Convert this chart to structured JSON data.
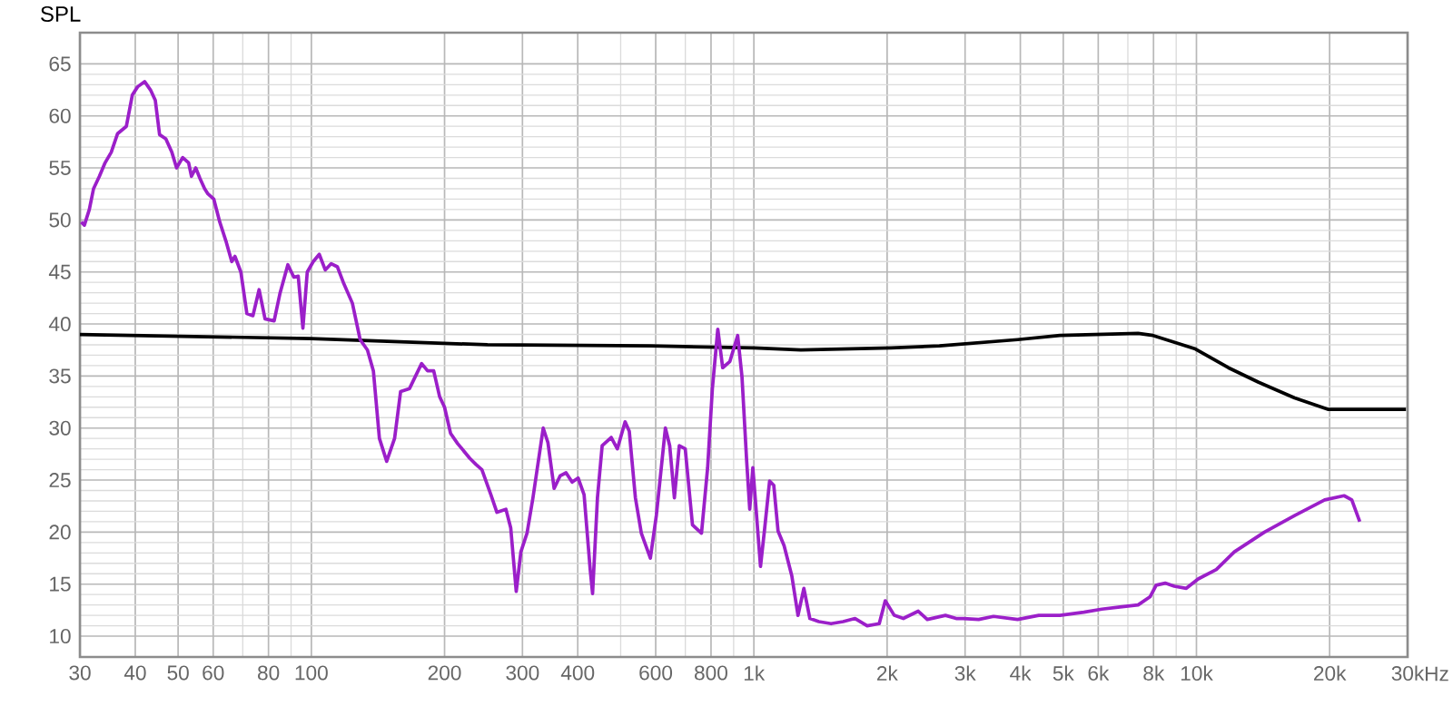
{
  "chart_data": {
    "type": "line",
    "ylabel": "SPL",
    "log": "x",
    "grid": true,
    "marker": "none",
    "line_style": "solid",
    "xlim": [
      30,
      30000
    ],
    "ylim": [
      8,
      68
    ],
    "xticks": [
      30,
      40,
      50,
      60,
      80,
      100,
      200,
      300,
      400,
      600,
      800,
      {
        "value": 1000,
        "label": "1k"
      },
      {
        "value": 2000,
        "label": "2k"
      },
      {
        "value": 3000,
        "label": "3k"
      },
      {
        "value": 4000,
        "label": "4k"
      },
      {
        "value": 5000,
        "label": "5k"
      },
      {
        "value": 6000,
        "label": "6k"
      },
      {
        "value": 8000,
        "label": "8k"
      },
      {
        "value": 10000,
        "label": "10k"
      },
      {
        "value": 20000,
        "label": "20k"
      },
      {
        "value": 30000,
        "label": "30k"
      }
    ],
    "xlabel": "Hz",
    "yticks": [
      10,
      15,
      20,
      25,
      30,
      35,
      40,
      45,
      50,
      55,
      60,
      65
    ],
    "series": [
      {
        "color": "#000000",
        "x": [
          30,
          100,
          250,
          584,
          1000,
          1277,
          2043,
          2626,
          3944,
          4914,
          7383,
          7980,
          9945,
          11810,
          13820,
          16670,
          19810,
          29750
        ],
        "values": [
          39.0,
          38.6,
          38.0,
          37.9,
          37.7,
          37.5,
          37.7,
          37.9,
          38.5,
          38.9,
          39.1,
          38.9,
          37.6,
          35.8,
          34.4,
          32.9,
          31.8,
          31.8
        ]
      },
      {
        "color": "#9b1fc9",
        "x": [
          30.2,
          30.7,
          31.5,
          32.2,
          33.2,
          34.2,
          35.3,
          36.5,
          38.2,
          39.4,
          40.5,
          42.0,
          43.3,
          44.4,
          45.4,
          46.9,
          48.4,
          49.6,
          51.2,
          52.8,
          53.6,
          54.8,
          56.0,
          57.4,
          58.4,
          60.2,
          62.1,
          64.1,
          66.1,
          67.2,
          69.3,
          71.5,
          73.8,
          76.2,
          78.6,
          82.4,
          85.0,
          88.5,
          91.3,
          93.4,
          95.7,
          97.9,
          101,
          104.2,
          107.5,
          110.9,
          114.5,
          118.1,
          123.8,
          128.9,
          133.9,
          138.1,
          142.5,
          148,
          154.2,
          159.1,
          166.7,
          172,
          177.5,
          183.1,
          189,
          195,
          200,
          206.3,
          214.1,
          228.0,
          235.6,
          242.9,
          254.5,
          262.6,
          275.2,
          282.2,
          290.4,
          297.5,
          307.2,
          316.8,
          323.7,
          334.2,
          342.5,
          353.7,
          364.8,
          376.3,
          388.5,
          400.7,
          413.3,
          426.7,
          432.0,
          443.1,
          454.1,
          476.0,
          491.4,
          511.7,
          522.9,
          539.8,
          556.8,
          583.6,
          602.0,
          631.0,
          645.4,
          661.3,
          678.3,
          699.7,
          726.5,
          761.5,
          786.3,
          805.7,
          828.8,
          850.1,
          882.6,
          919.1,
          940.0,
          963.2,
          978.6,
          994.5,
          1009,
          1035,
          1058,
          1085,
          1109,
          1134,
          1170,
          1218,
          1258,
          1297,
          1338,
          1402,
          1494,
          1591,
          1693,
          1803,
          1920,
          1981,
          2076,
          2176,
          2352,
          2465,
          2709,
          2865,
          2976,
          3220,
          3480,
          3944,
          4402,
          4914,
          5568,
          6115,
          6721,
          7383,
          7863,
          8110,
          8500,
          8910,
          9487,
          10090,
          11090,
          12180,
          14250,
          16670,
          19490,
          21560,
          22440,
          23390
        ],
        "values": [
          49.8,
          49.5,
          51.0,
          53.0,
          54.2,
          55.5,
          56.5,
          58.3,
          59.0,
          62.0,
          62.8,
          63.3,
          62.5,
          61.5,
          58.2,
          57.8,
          56.5,
          55.0,
          56.0,
          55.5,
          54.2,
          55.0,
          54.0,
          53.0,
          52.5,
          52.0,
          49.8,
          48.0,
          46.0,
          46.5,
          45.0,
          41.0,
          40.8,
          43.3,
          40.5,
          40.3,
          43.0,
          45.7,
          44.5,
          44.6,
          39.6,
          45.0,
          46.0,
          46.7,
          45.2,
          45.8,
          45.5,
          44.0,
          42.0,
          38.5,
          37.5,
          35.5,
          29.0,
          26.8,
          29.0,
          33.5,
          33.8,
          35.0,
          36.2,
          35.5,
          35.5,
          33.0,
          32.0,
          29.5,
          28.5,
          27.1,
          26.5,
          26.0,
          23.6,
          21.9,
          22.2,
          20.4,
          14.3,
          18.1,
          19.9,
          23.3,
          26.0,
          30.0,
          28.6,
          24.2,
          25.4,
          25.7,
          24.8,
          25.2,
          23.6,
          16.4,
          14.1,
          23.3,
          28.3,
          29.1,
          28.0,
          30.6,
          29.7,
          23.3,
          19.9,
          17.5,
          21.6,
          30.0,
          28.3,
          23.3,
          28.3,
          28.0,
          20.7,
          19.9,
          26.2,
          33.8,
          39.5,
          35.8,
          36.4,
          38.9,
          34.9,
          26.8,
          22.2,
          26.2,
          22.8,
          16.7,
          20.4,
          24.9,
          24.5,
          20.1,
          18.7,
          15.8,
          12.0,
          14.6,
          11.7,
          11.4,
          11.2,
          11.4,
          11.7,
          11.0,
          11.2,
          13.4,
          12.0,
          11.7,
          12.4,
          11.6,
          12.0,
          11.7,
          11.7,
          11.6,
          11.9,
          11.6,
          12.0,
          12.0,
          12.3,
          12.6,
          12.8,
          13.0,
          13.8,
          14.9,
          15.1,
          14.8,
          14.6,
          15.5,
          16.4,
          18.1,
          20.0,
          21.6,
          23.1,
          23.5,
          23.1,
          21.0
        ]
      }
    ]
  }
}
